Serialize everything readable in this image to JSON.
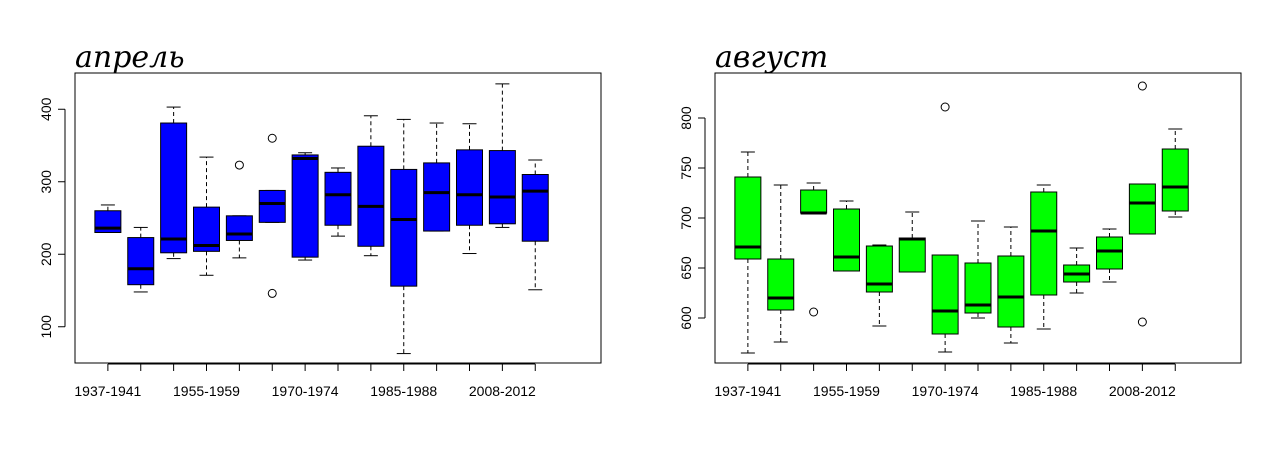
{
  "chart_data": [
    {
      "type": "boxplot",
      "title": "апрель",
      "box_color": "#0000ff",
      "ylim": [
        50,
        450
      ],
      "y_ticks": [
        100,
        200,
        300,
        400
      ],
      "x_tick_labels": [
        "1937-1941",
        "1955-1959",
        "1970-1974",
        "1985-1988",
        "2008-2012"
      ],
      "x_tick_label_positions": [
        1,
        4,
        7,
        10,
        13
      ],
      "xlim": [
        0,
        16
      ],
      "boxes": [
        {
          "position": 1,
          "whisker_low": 230,
          "q1": 230,
          "median": 236,
          "q3": 260,
          "whisker_high": 268,
          "outliers": []
        },
        {
          "position": 2,
          "whisker_low": 148,
          "q1": 158,
          "median": 180,
          "q3": 223,
          "whisker_high": 237,
          "outliers": []
        },
        {
          "position": 3,
          "whisker_low": 194,
          "q1": 202,
          "median": 221,
          "q3": 381,
          "whisker_high": 403,
          "outliers": []
        },
        {
          "position": 4,
          "whisker_low": 171,
          "q1": 204,
          "median": 212,
          "q3": 265,
          "whisker_high": 334,
          "outliers": []
        },
        {
          "position": 5,
          "whisker_low": 195,
          "q1": 219,
          "median": 228,
          "q3": 253,
          "whisker_high": 253,
          "outliers": [
            323
          ]
        },
        {
          "position": 6,
          "whisker_low": 244,
          "q1": 244,
          "median": 270,
          "q3": 288,
          "whisker_high": 288,
          "outliers": [
            360,
            146
          ]
        },
        {
          "position": 7,
          "whisker_low": 192,
          "q1": 196,
          "median": 332,
          "q3": 337,
          "whisker_high": 340,
          "outliers": []
        },
        {
          "position": 8,
          "whisker_low": 225,
          "q1": 240,
          "median": 282,
          "q3": 313,
          "whisker_high": 319,
          "outliers": []
        },
        {
          "position": 9,
          "whisker_low": 198,
          "q1": 211,
          "median": 266,
          "q3": 349,
          "whisker_high": 391,
          "outliers": []
        },
        {
          "position": 10,
          "whisker_low": 63,
          "q1": 156,
          "median": 248,
          "q3": 317,
          "whisker_high": 386,
          "outliers": []
        },
        {
          "position": 11,
          "whisker_low": 232,
          "q1": 232,
          "median": 285,
          "q3": 326,
          "whisker_high": 381,
          "outliers": []
        },
        {
          "position": 12,
          "whisker_low": 201,
          "q1": 240,
          "median": 282,
          "q3": 344,
          "whisker_high": 380,
          "outliers": []
        },
        {
          "position": 13,
          "whisker_low": 237,
          "q1": 242,
          "median": 279,
          "q3": 343,
          "whisker_high": 435,
          "outliers": []
        },
        {
          "position": 14,
          "whisker_low": 151,
          "q1": 218,
          "median": 287,
          "q3": 310,
          "whisker_high": 330,
          "outliers": []
        }
      ]
    },
    {
      "type": "boxplot",
      "title": "август",
      "box_color": "#00ff00",
      "ylim": [
        555,
        845
      ],
      "y_ticks": [
        600,
        650,
        700,
        750,
        800
      ],
      "x_tick_labels": [
        "1937-1941",
        "1955-1959",
        "1970-1974",
        "1985-1988",
        "2008-2012"
      ],
      "x_tick_label_positions": [
        1,
        4,
        7,
        10,
        13
      ],
      "xlim": [
        0,
        16
      ],
      "boxes": [
        {
          "position": 1,
          "whisker_low": 565,
          "q1": 659,
          "median": 671,
          "q3": 741,
          "whisker_high": 766,
          "outliers": []
        },
        {
          "position": 2,
          "whisker_low": 576,
          "q1": 608,
          "median": 620,
          "q3": 659,
          "whisker_high": 733,
          "outliers": []
        },
        {
          "position": 3,
          "whisker_low": 705,
          "q1": 705,
          "median": 705,
          "q3": 728,
          "whisker_high": 735,
          "outliers": [
            606
          ]
        },
        {
          "position": 4,
          "whisker_low": 647,
          "q1": 647,
          "median": 661,
          "q3": 709,
          "whisker_high": 717,
          "outliers": []
        },
        {
          "position": 5,
          "whisker_low": 592,
          "q1": 626,
          "median": 634,
          "q3": 672,
          "whisker_high": 673,
          "outliers": []
        },
        {
          "position": 6,
          "whisker_low": 646,
          "q1": 646,
          "median": 679,
          "q3": 680,
          "whisker_high": 706,
          "outliers": []
        },
        {
          "position": 7,
          "whisker_low": 566,
          "q1": 584,
          "median": 607,
          "q3": 663,
          "whisker_high": 663,
          "outliers": [
            811
          ]
        },
        {
          "position": 8,
          "whisker_low": 600,
          "q1": 605,
          "median": 613,
          "q3": 655,
          "whisker_high": 697,
          "outliers": []
        },
        {
          "position": 9,
          "whisker_low": 575,
          "q1": 591,
          "median": 621,
          "q3": 662,
          "whisker_high": 691,
          "outliers": []
        },
        {
          "position": 10,
          "whisker_low": 589,
          "q1": 623,
          "median": 687,
          "q3": 726,
          "whisker_high": 733,
          "outliers": []
        },
        {
          "position": 11,
          "whisker_low": 625,
          "q1": 636,
          "median": 644,
          "q3": 653,
          "whisker_high": 670,
          "outliers": []
        },
        {
          "position": 12,
          "whisker_low": 636,
          "q1": 649,
          "median": 667,
          "q3": 681,
          "whisker_high": 689,
          "outliers": []
        },
        {
          "position": 13,
          "whisker_low": 684,
          "q1": 684,
          "median": 715,
          "q3": 734,
          "whisker_high": 734,
          "outliers": [
            832,
            596
          ]
        },
        {
          "position": 14,
          "whisker_low": 701,
          "q1": 707,
          "median": 731,
          "q3": 769,
          "whisker_high": 789,
          "outliers": []
        }
      ]
    }
  ]
}
